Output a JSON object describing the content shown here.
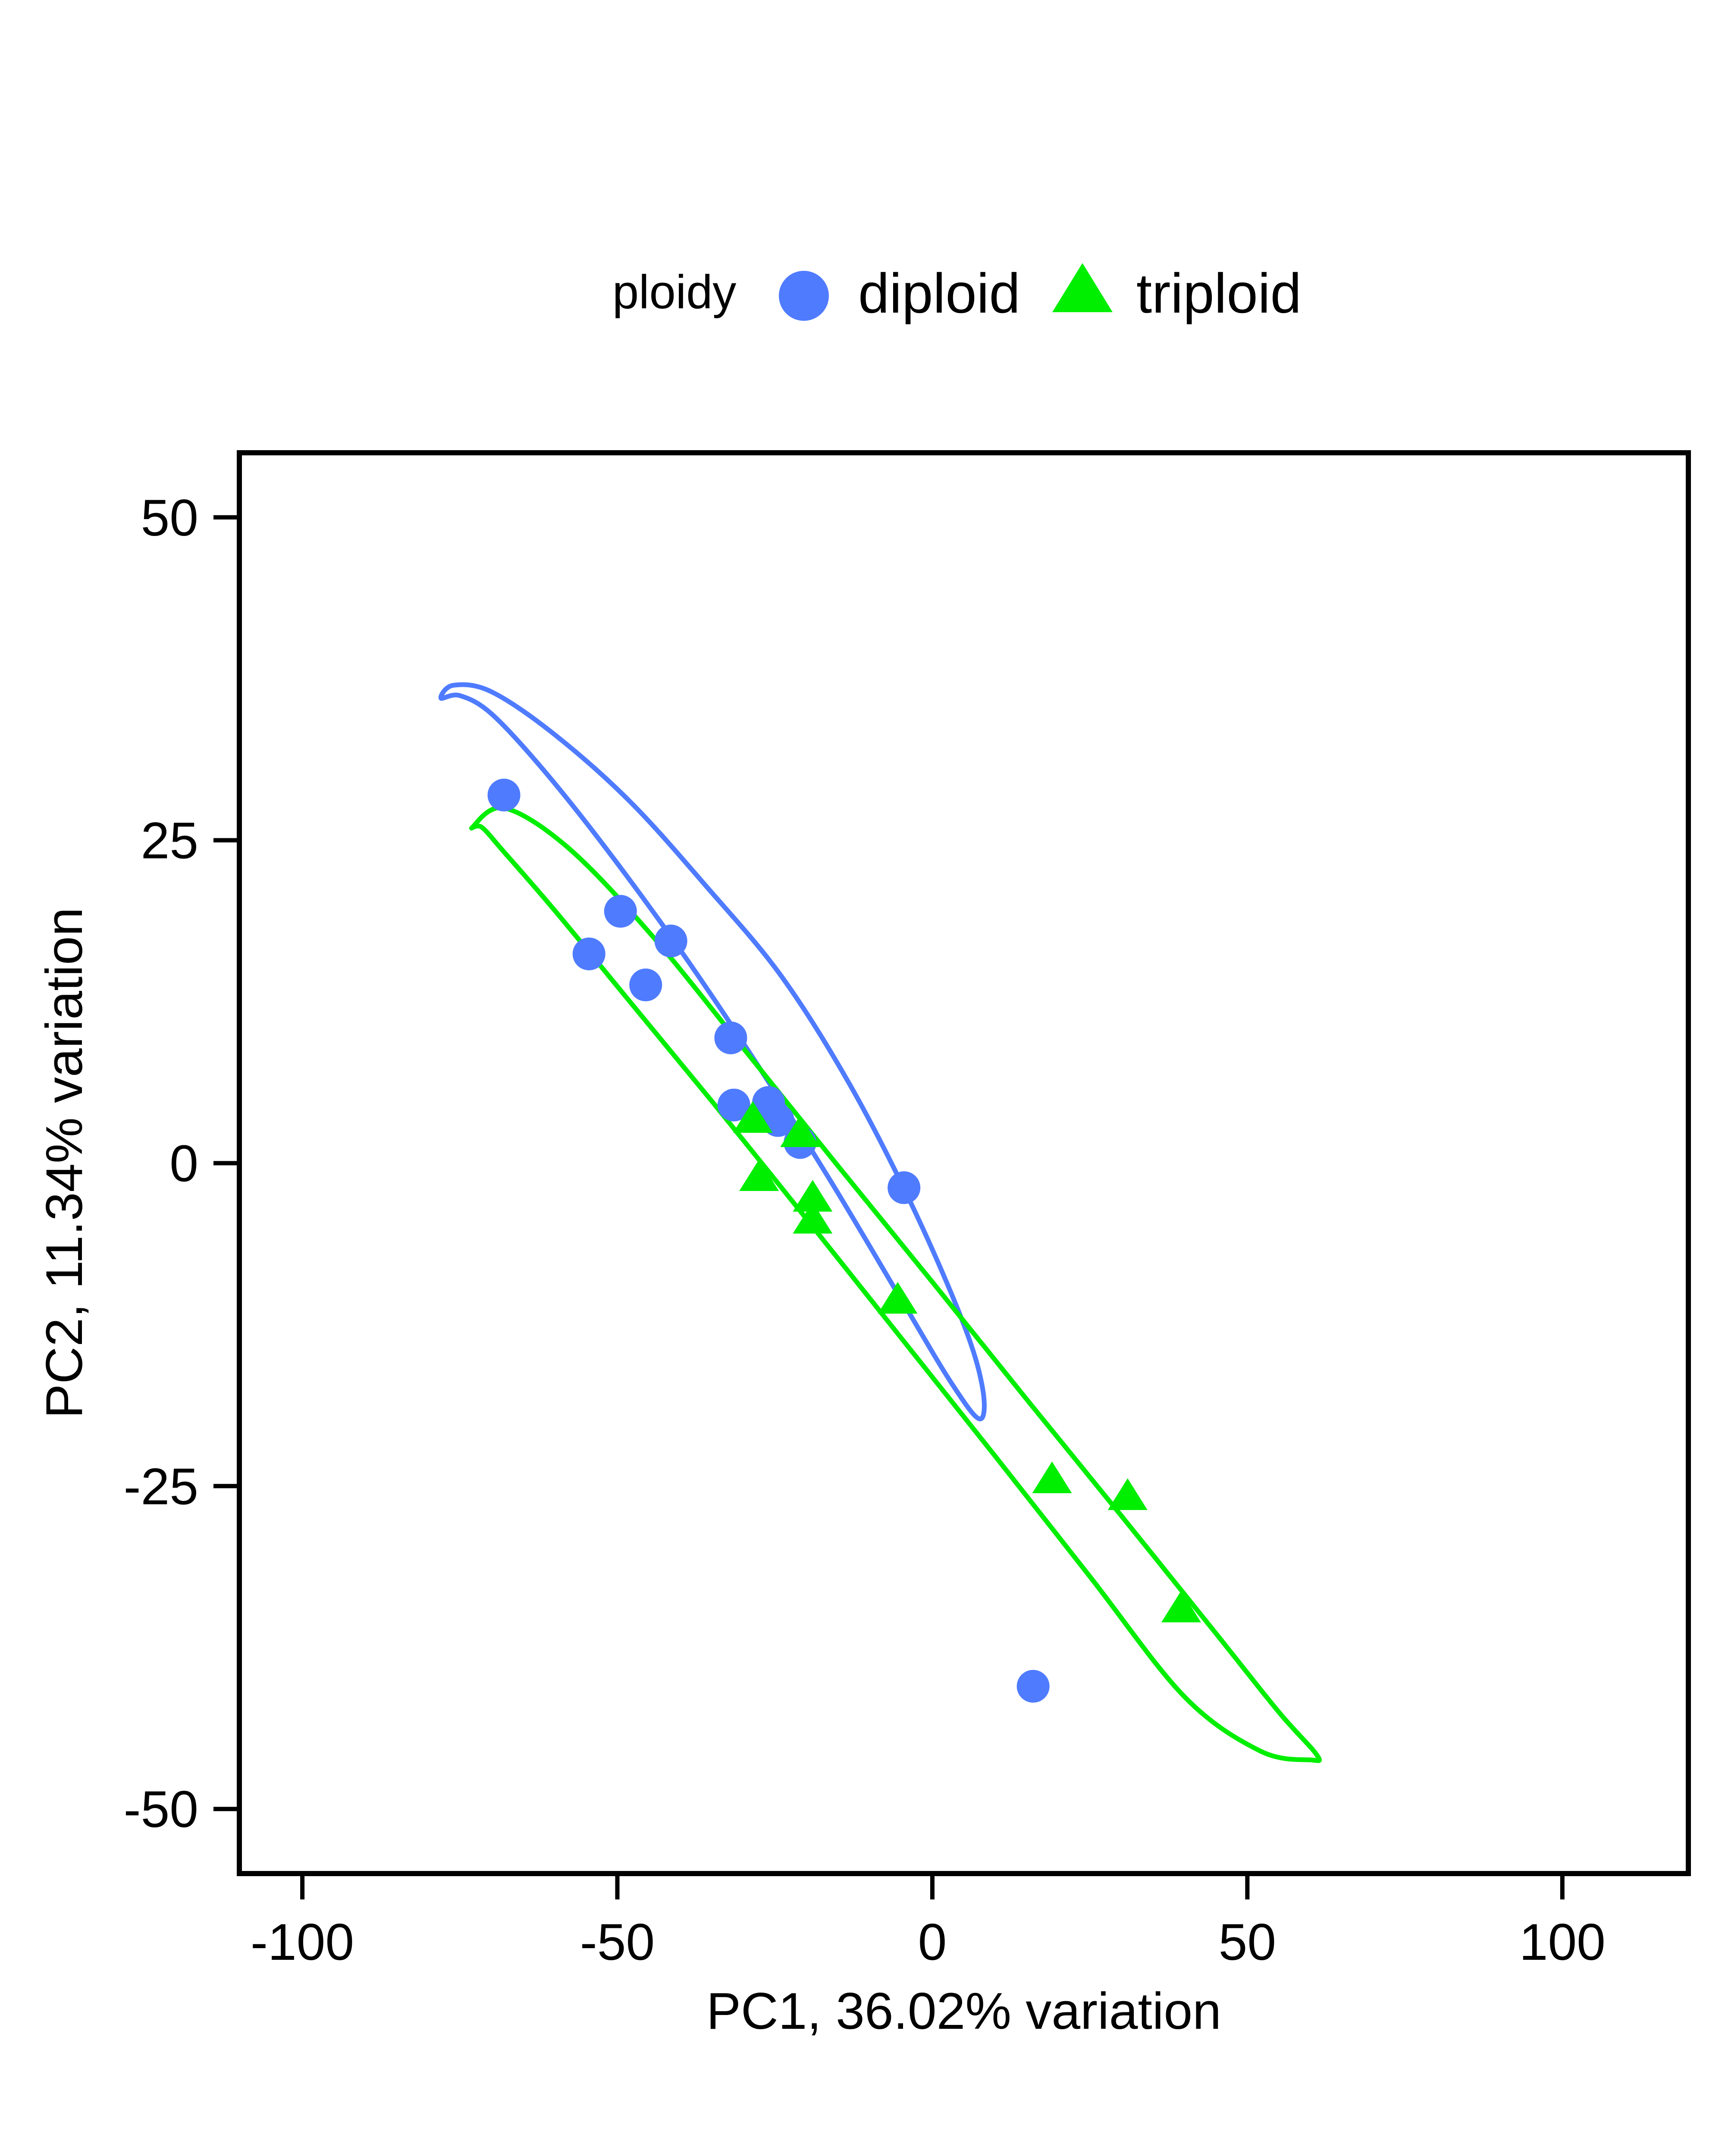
{
  "chart_data": {
    "type": "scatter",
    "xlabel": "PC1, 36.02% variation",
    "ylabel": "PC2, 11.34% variation",
    "xlim": [
      -110,
      120
    ],
    "ylim": [
      -55,
      55
    ],
    "x_ticks": [
      -100,
      -50,
      0,
      50,
      100
    ],
    "y_ticks": [
      50,
      25,
      0,
      -25,
      -50
    ],
    "x_tick_labels": [
      "-100",
      "-50",
      "0",
      "50",
      "100"
    ],
    "y_tick_labels": [
      "50",
      "25",
      "0",
      "-25",
      "-50"
    ],
    "grid": false,
    "legend": {
      "title": "ploidy",
      "placement": "top",
      "entries": [
        "diploid",
        "triploid"
      ]
    },
    "series": [
      {
        "name": "diploid",
        "color": "#4F7BFF",
        "marker": "circle",
        "points": [
          [
            -68,
            28.5
          ],
          [
            -49.5,
            19.5
          ],
          [
            -54.5,
            16.2
          ],
          [
            -41.5,
            17.2
          ],
          [
            -45.5,
            13.8
          ],
          [
            -32,
            9.7
          ],
          [
            -31.5,
            4.5
          ],
          [
            -26,
            4.7
          ],
          [
            -24.5,
            3.3
          ],
          [
            -21,
            1.6
          ],
          [
            -4.5,
            -1.9
          ],
          [
            16,
            -40.5
          ]
        ],
        "ellipse": [
          [
            -78,
            36
          ],
          [
            -75,
            36.2
          ],
          [
            -70,
            34.8
          ],
          [
            -62,
            30.6
          ],
          [
            -52,
            24.5
          ],
          [
            -40,
            16.5
          ],
          [
            -28,
            7.8
          ],
          [
            -16,
            -1.5
          ],
          [
            -5,
            -10.5
          ],
          [
            3,
            -17
          ],
          [
            7.5,
            -19.8
          ],
          [
            8,
            -17.5
          ],
          [
            5,
            -12.5
          ],
          [
            -3,
            -3.5
          ],
          [
            -13,
            6
          ],
          [
            -24,
            14.5
          ],
          [
            -36,
            21.5
          ],
          [
            -48,
            28
          ],
          [
            -60,
            33.2
          ],
          [
            -70,
            36.5
          ],
          [
            -76,
            37
          ],
          [
            -78,
            36
          ]
        ]
      },
      {
        "name": "triploid",
        "color": "#00EE00",
        "marker": "triangle",
        "points": [
          [
            -28.5,
            3.4
          ],
          [
            -21,
            2.3
          ],
          [
            -27.5,
            -1.1
          ],
          [
            -19,
            -2.7
          ],
          [
            -19,
            -4.4
          ],
          [
            -5.5,
            -10.6
          ],
          [
            19,
            -24.5
          ],
          [
            31,
            -25.8
          ],
          [
            39.5,
            -34.5
          ]
        ],
        "ellipse": [
          [
            -73,
            26
          ],
          [
            -71.5,
            26
          ],
          [
            -68,
            24.1
          ],
          [
            -60,
            19.6
          ],
          [
            -48,
            12.5
          ],
          [
            -35,
            4.8
          ],
          [
            -20,
            -4.3
          ],
          [
            -5,
            -13.5
          ],
          [
            10,
            -22.7
          ],
          [
            25,
            -32
          ],
          [
            40,
            -41.3
          ],
          [
            52,
            -45.5
          ],
          [
            60,
            -46.2
          ],
          [
            61,
            -45.8
          ],
          [
            55,
            -42.5
          ],
          [
            45,
            -36.4
          ],
          [
            30,
            -27.3
          ],
          [
            15,
            -18.3
          ],
          [
            0,
            -9.2
          ],
          [
            -15,
            -0.2
          ],
          [
            -30,
            8.9
          ],
          [
            -45,
            17.9
          ],
          [
            -58,
            24.5
          ],
          [
            -68,
            27.5
          ],
          [
            -73,
            26
          ]
        ]
      }
    ]
  }
}
